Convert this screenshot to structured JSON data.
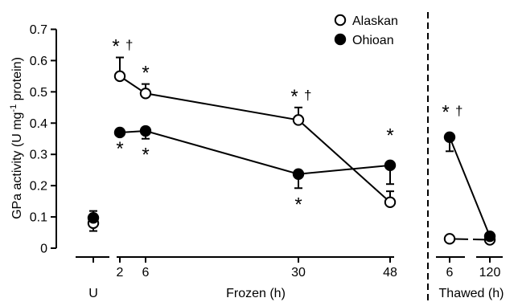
{
  "chart_data": {
    "type": "line",
    "ylabel_main": "GPa activity (U mg",
    "ylabel_sup": "-1",
    "ylabel_tail": " protein)",
    "ylim": [
      0,
      0.7
    ],
    "yticks": [
      "0",
      "0.1",
      "0.2",
      "0.3",
      "0.4",
      "0.5",
      "0.6",
      "0.7"
    ],
    "grid": false,
    "legend_position": "top-right",
    "groups": [
      {
        "label": "U",
        "ticks": []
      },
      {
        "label": "Frozen (h)",
        "ticks": [
          "2",
          "6",
          "30",
          "48"
        ]
      },
      {
        "label": "Thawed (h)",
        "ticks": [
          "6",
          "120"
        ]
      }
    ],
    "series": [
      {
        "name": "Alaskan",
        "marker": "open-circle",
        "unfrozen": {
          "y": 0.08,
          "err": 0.025
        },
        "frozen": [
          {
            "x": 2,
            "y": 0.55,
            "err": 0.06,
            "sig": "*",
            "dagger": "†",
            "sig_pos": "above"
          },
          {
            "x": 6,
            "y": 0.495,
            "err": 0.03,
            "sig": "*",
            "dagger": "",
            "sig_pos": "above"
          },
          {
            "x": 30,
            "y": 0.41,
            "err": 0.04,
            "sig": "*",
            "dagger": "†",
            "sig_pos": "above"
          },
          {
            "x": 48,
            "y": 0.147,
            "err": 0.035,
            "sig": "",
            "dagger": "",
            "sig_pos": "above"
          }
        ],
        "thawed": [
          {
            "x": 6,
            "y": 0.03,
            "err": 0.0,
            "sig": "",
            "dagger": "",
            "sig_pos": "above"
          },
          {
            "x": 120,
            "y": 0.027,
            "err": 0.0,
            "sig": "",
            "dagger": "",
            "sig_pos": "above"
          }
        ]
      },
      {
        "name": "Ohioan",
        "marker": "filled-circle",
        "unfrozen": {
          "y": 0.097,
          "err": 0.022
        },
        "frozen": [
          {
            "x": 2,
            "y": 0.37,
            "err": 0.0,
            "sig": "*",
            "dagger": "",
            "sig_pos": "below"
          },
          {
            "x": 6,
            "y": 0.375,
            "err": 0.025,
            "sig": "*",
            "dagger": "",
            "sig_pos": "below"
          },
          {
            "x": 30,
            "y": 0.237,
            "err": 0.045,
            "sig": "*",
            "dagger": "",
            "sig_pos": "below"
          },
          {
            "x": 48,
            "y": 0.265,
            "err": 0.06,
            "sig": "*",
            "dagger": "",
            "sig_pos": "above"
          }
        ],
        "thawed": [
          {
            "x": 6,
            "y": 0.355,
            "err": 0.045,
            "sig": "*",
            "dagger": "†",
            "sig_pos": "above"
          },
          {
            "x": 120,
            "y": 0.038,
            "err": 0.0,
            "sig": "",
            "dagger": "",
            "sig_pos": "above"
          }
        ]
      }
    ],
    "colors": {
      "line": "#000000",
      "open_fill": "#ffffff",
      "filled_fill": "#000000"
    }
  }
}
